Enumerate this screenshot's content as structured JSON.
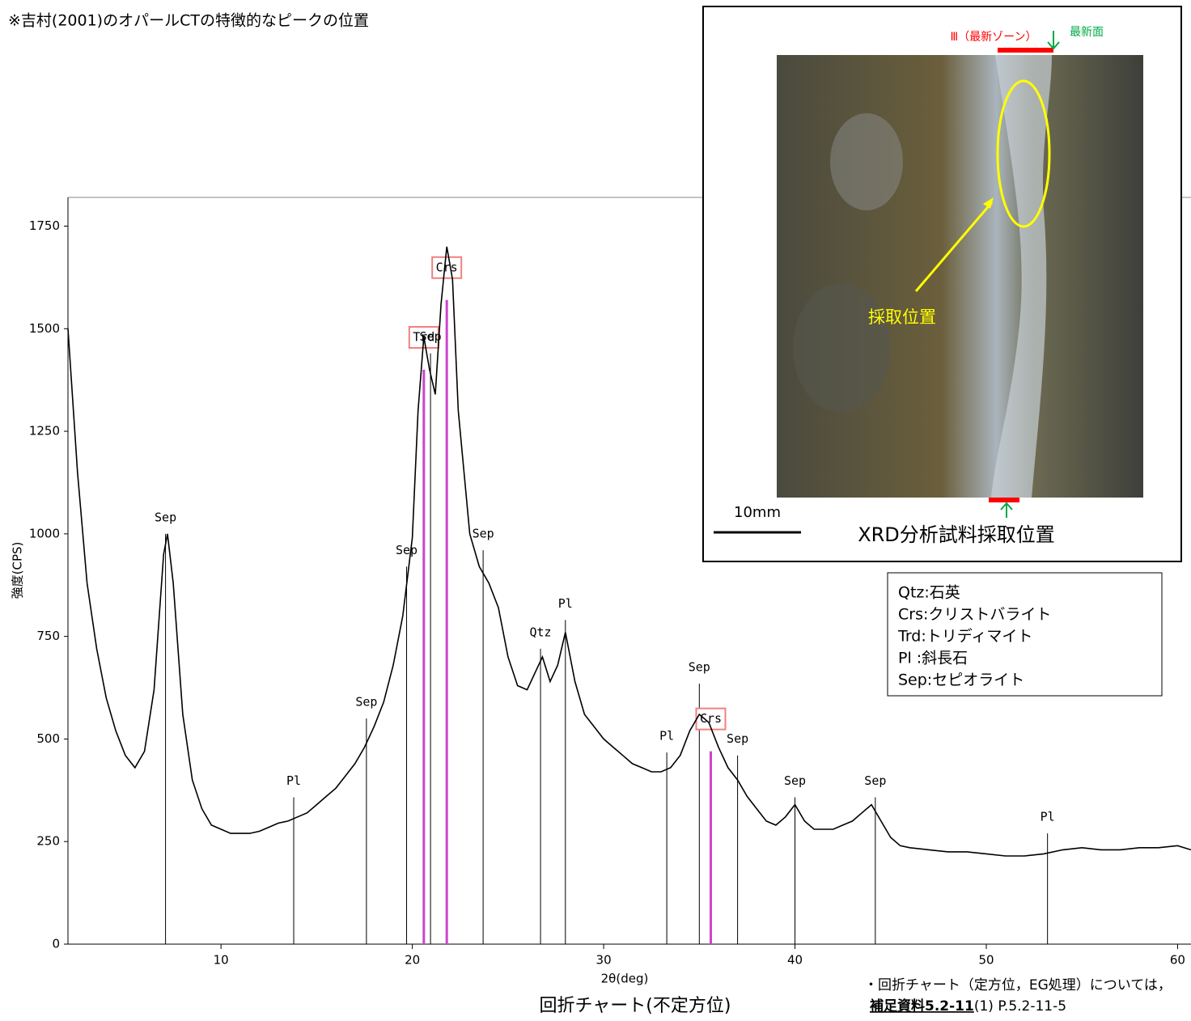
{
  "chart_data": {
    "type": "line",
    "title": "※吉村(2001)のオパールCTの特徴的なピークの位置",
    "x_label": "2θ(deg)",
    "y_label": "強度(CPS)",
    "caption": "回折チャート(不定方位)",
    "note": "・回折チャート（定方位，EG処理）については，",
    "reference_bold": "補足資料5.2-11",
    "reference_rest": "(1) P.5.2-11-5",
    "xlim": [
      2,
      60.7
    ],
    "ylim": [
      0,
      1820
    ],
    "xticks": [
      10,
      20,
      30,
      40,
      50,
      60
    ],
    "yticks": [
      0,
      250,
      500,
      750,
      1000,
      1250,
      1500,
      1750
    ],
    "x": [
      2.0,
      2.5,
      3.0,
      3.5,
      4.0,
      4.5,
      5.0,
      5.5,
      6.0,
      6.5,
      7.0,
      7.2,
      7.5,
      8.0,
      8.5,
      9.0,
      9.5,
      10.0,
      10.5,
      11.0,
      11.5,
      12.0,
      12.5,
      13.0,
      13.5,
      14.0,
      14.5,
      15.0,
      15.5,
      16.0,
      16.5,
      17.0,
      17.5,
      18.0,
      18.5,
      19.0,
      19.5,
      20.0,
      20.3,
      20.6,
      20.9,
      21.2,
      21.5,
      21.8,
      22.1,
      22.4,
      22.7,
      23.0,
      23.5,
      24.0,
      24.5,
      25.0,
      25.5,
      26.0,
      26.5,
      26.8,
      27.2,
      27.6,
      28.0,
      28.5,
      29.0,
      29.5,
      30.0,
      30.5,
      31.0,
      31.5,
      32.0,
      32.5,
      33.0,
      33.5,
      34.0,
      34.5,
      35.0,
      35.5,
      36.0,
      36.5,
      37.0,
      37.5,
      38.0,
      38.5,
      39.0,
      39.5,
      40.0,
      40.5,
      41.0,
      41.5,
      42.0,
      42.5,
      43.0,
      43.5,
      44.0,
      44.5,
      45.0,
      45.5,
      46,
      47,
      48,
      49,
      50,
      51,
      52,
      53,
      54,
      55,
      56,
      57,
      58,
      59,
      60,
      60.7
    ],
    "series": [
      {
        "name": "XRD",
        "color": "#000000",
        "values": [
          1500,
          1150,
          880,
          720,
          600,
          520,
          460,
          430,
          470,
          620,
          950,
          1000,
          880,
          560,
          400,
          330,
          290,
          280,
          270,
          270,
          270,
          275,
          285,
          295,
          300,
          310,
          320,
          340,
          360,
          380,
          410,
          440,
          480,
          530,
          590,
          680,
          800,
          990,
          1300,
          1480,
          1400,
          1340,
          1560,
          1700,
          1620,
          1300,
          1150,
          1000,
          920,
          880,
          820,
          700,
          630,
          620,
          670,
          700,
          640,
          680,
          760,
          640,
          560,
          530,
          500,
          480,
          460,
          440,
          430,
          420,
          420,
          430,
          460,
          520,
          560,
          540,
          480,
          430,
          400,
          360,
          330,
          300,
          290,
          310,
          340,
          300,
          280,
          280,
          280,
          290,
          300,
          320,
          340,
          300,
          260,
          240,
          235,
          230,
          225,
          225,
          220,
          215,
          215,
          220,
          230,
          235,
          230,
          230,
          235,
          235,
          240,
          230
        ]
      }
    ],
    "peaks": [
      {
        "label": "Sep",
        "x": 7.1,
        "height": 1000,
        "color": "#000000"
      },
      {
        "label": "Pl",
        "x": 13.8,
        "height": 358,
        "color": "#000000"
      },
      {
        "label": "Sep",
        "x": 17.6,
        "height": 550,
        "color": "#000000"
      },
      {
        "label": "Sep",
        "x": 19.7,
        "height": 920,
        "color": "#000000"
      },
      {
        "label": "Trd",
        "x": 20.6,
        "height": 1400,
        "color": "#cc44cc",
        "boxed": true
      },
      {
        "label": "Sep",
        "x": 20.95,
        "height": 1440,
        "color": "#000000"
      },
      {
        "label": "Crs",
        "x": 21.8,
        "height": 1570,
        "color": "#cc44cc",
        "boxed": true
      },
      {
        "label": "Sep",
        "x": 23.7,
        "height": 960,
        "color": "#000000"
      },
      {
        "label": "Qtz",
        "x": 26.7,
        "height": 720,
        "color": "#000000"
      },
      {
        "label": "Pl",
        "x": 28.0,
        "height": 790,
        "color": "#000000"
      },
      {
        "label": "Pl",
        "x": 33.3,
        "height": 467,
        "color": "#000000"
      },
      {
        "label": "Sep",
        "x": 35.0,
        "height": 635,
        "color": "#000000"
      },
      {
        "label": "Crs",
        "x": 35.6,
        "height": 470,
        "color": "#cc44cc",
        "boxed": true
      },
      {
        "label": "Sep",
        "x": 37.0,
        "height": 460,
        "color": "#000000"
      },
      {
        "label": "Sep",
        "x": 40.0,
        "height": 358,
        "color": "#000000"
      },
      {
        "label": "Sep",
        "x": 44.2,
        "height": 358,
        "color": "#000000"
      },
      {
        "label": "Pl",
        "x": 53.2,
        "height": 270,
        "color": "#000000"
      }
    ],
    "legend_notes": [
      "Qtz:石英",
      "Crs:クリストバライト",
      "Trd:トリディマイト",
      "Pl  :斜長石",
      "Sep:セピオライト"
    ],
    "photo": {
      "zone_label": "Ⅲ（最新ゾーン）",
      "newest_surface": "最新面",
      "sampling_label": "採取位置",
      "scale": "10mm",
      "caption": "XRD分析試料採取位置"
    }
  }
}
